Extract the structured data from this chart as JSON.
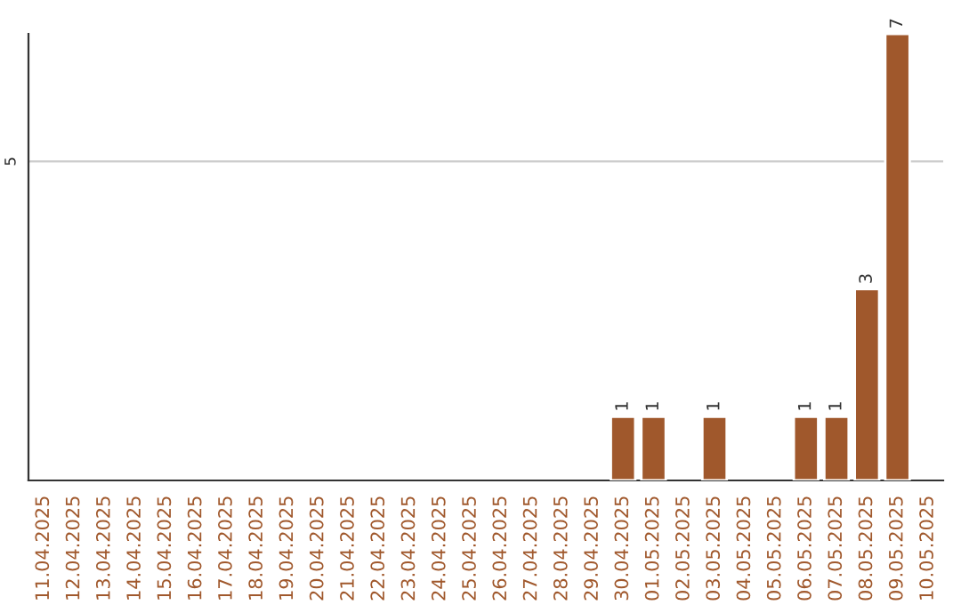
{
  "chart_data": {
    "type": "bar",
    "categories": [
      "11.04.2025",
      "12.04.2025",
      "13.04.2025",
      "14.04.2025",
      "15.04.2025",
      "16.04.2025",
      "17.04.2025",
      "18.04.2025",
      "19.04.2025",
      "20.04.2025",
      "21.04.2025",
      "22.04.2025",
      "23.04.2025",
      "24.04.2025",
      "25.04.2025",
      "26.04.2025",
      "27.04.2025",
      "28.04.2025",
      "29.04.2025",
      "30.04.2025",
      "01.05.2025",
      "02.05.2025",
      "03.05.2025",
      "04.05.2025",
      "05.05.2025",
      "06.05.2025",
      "07.05.2025",
      "08.05.2025",
      "09.05.2025",
      "10.05.2025"
    ],
    "values": [
      null,
      null,
      null,
      null,
      null,
      null,
      null,
      null,
      null,
      null,
      null,
      null,
      null,
      null,
      null,
      null,
      null,
      null,
      null,
      1,
      1,
      null,
      1,
      null,
      null,
      1,
      1,
      3,
      7,
      null
    ],
    "color": "#a0582c",
    "ylim": [
      0,
      7
    ],
    "yticks": [
      5
    ],
    "grid": "y",
    "data_labels": true
  }
}
